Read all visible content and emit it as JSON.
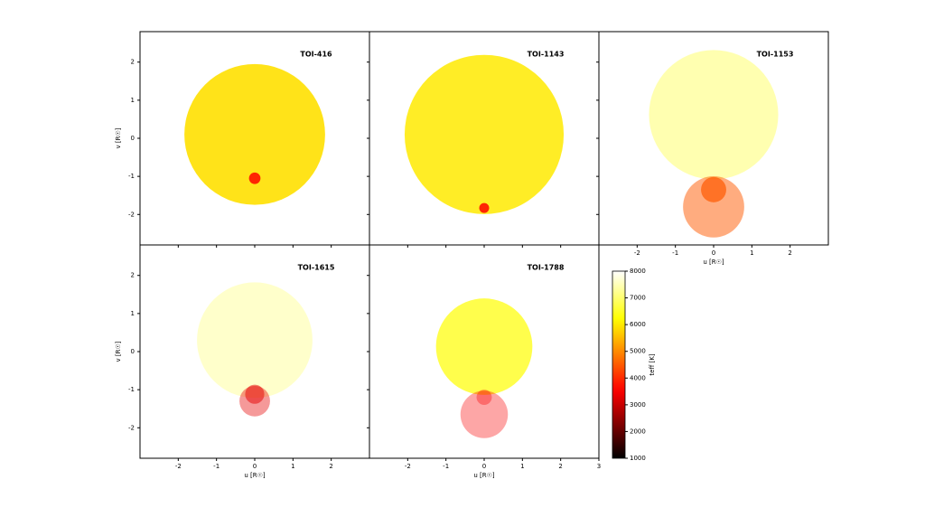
{
  "chart_data": [
    {
      "type": "bubble",
      "title": "TOI-416",
      "xlim": [
        -3,
        3
      ],
      "ylim": [
        -2.8,
        2.8
      ],
      "xticks": [
        -2,
        -1,
        0,
        1,
        2
      ],
      "yticks": [
        -2,
        -1,
        0,
        1,
        2
      ],
      "xticklabels": false,
      "yticklabels": true,
      "ylabel": "v [R☉]",
      "circles": {
        "u": [
          0,
          0
        ],
        "v": [
          0.1,
          -1.05
        ],
        "radius": [
          1.84,
          0.15
        ],
        "teff": [
          5900,
          3700
        ],
        "alpha": [
          0.9,
          0.9
        ]
      }
    },
    {
      "type": "bubble",
      "title": "TOI-1143",
      "xlim": [
        -3,
        3
      ],
      "ylim": [
        -2.8,
        2.8
      ],
      "xticks": [
        -2,
        -1,
        0,
        1,
        2
      ],
      "yticks": [
        -2,
        -1,
        0,
        1,
        2
      ],
      "xticklabels": false,
      "yticklabels": false,
      "circles": {
        "u": [
          0,
          0
        ],
        "v": [
          0.1,
          -1.83
        ],
        "radius": [
          2.08,
          0.13
        ],
        "teff": [
          6000,
          3700
        ],
        "alpha": [
          0.85,
          0.9
        ]
      }
    },
    {
      "type": "bubble",
      "title": "TOI-1153",
      "xlim": [
        -3,
        3
      ],
      "ylim": [
        -2.8,
        2.8
      ],
      "xticks": [
        -2,
        -1,
        0,
        1,
        2
      ],
      "yticks": [
        -2,
        -1,
        0,
        1,
        2
      ],
      "xticklabels": true,
      "yticklabels": false,
      "xlabel": "u [R☉]",
      "circles": {
        "u": [
          0,
          0,
          0
        ],
        "v": [
          0.62,
          -1.8,
          -1.35
        ],
        "radius": [
          1.69,
          0.8,
          0.33
        ],
        "teff": [
          7000,
          4500,
          4500
        ],
        "alpha": [
          0.55,
          0.5,
          0.7
        ]
      }
    },
    {
      "type": "bubble",
      "title": "TOI-1615",
      "xlim": [
        -3,
        3
      ],
      "ylim": [
        -2.8,
        2.8
      ],
      "xticks": [
        -2,
        -1,
        0,
        1,
        2
      ],
      "yticks": [
        -2,
        -1,
        0,
        1,
        2
      ],
      "xticklabels": true,
      "yticklabels": true,
      "xlabel": "u [R☉]",
      "ylabel": "v [R☉]",
      "circles": {
        "u": [
          0,
          0,
          0
        ],
        "v": [
          0.3,
          -1.3,
          -1.12
        ],
        "radius": [
          1.51,
          0.4,
          0.25
        ],
        "teff": [
          7200,
          3300,
          3300
        ],
        "alpha": [
          0.45,
          0.4,
          0.5
        ]
      }
    },
    {
      "type": "bubble",
      "title": "TOI-1788",
      "xlim": [
        -3,
        3
      ],
      "ylim": [
        -2.8,
        2.8
      ],
      "xticks": [
        -2,
        -1,
        0,
        1,
        2,
        3
      ],
      "yticks": [
        -2,
        -1,
        0,
        1,
        2
      ],
      "xticklabels": true,
      "yticklabels": false,
      "xlabel": "u [R☉]",
      "circles": {
        "u": [
          0,
          0,
          0
        ],
        "v": [
          0.13,
          -1.65,
          -1.2
        ],
        "radius": [
          1.26,
          0.62,
          0.2
        ],
        "teff": [
          6200,
          3500,
          3500
        ],
        "alpha": [
          0.7,
          0.35,
          0.35
        ]
      }
    },
    {
      "type": "colorbar",
      "label": "teff [K]",
      "colormap": "hot",
      "lim": [
        1000,
        8000
      ],
      "ticks": [
        1000,
        2000,
        3000,
        4000,
        5000,
        6000,
        7000,
        8000
      ]
    }
  ]
}
